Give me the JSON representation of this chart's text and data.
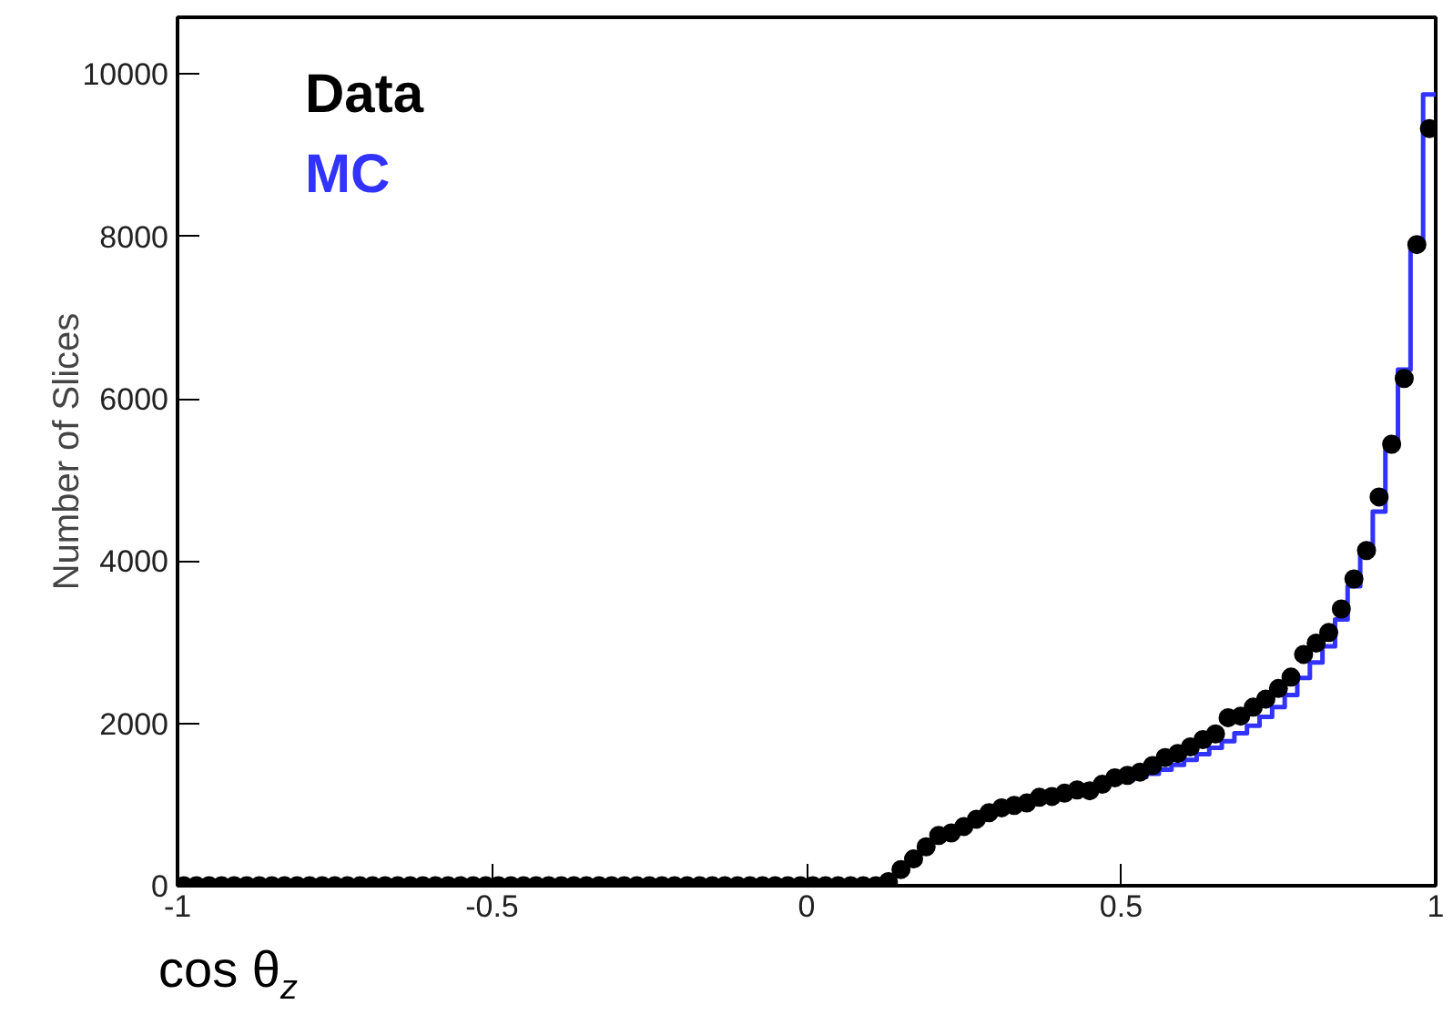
{
  "chart_data": {
    "type": "histogram",
    "xlabel": "cos θ$_{z}$",
    "ylabel": "Number of Slices",
    "bins": [
      -1.0,
      -0.98,
      -0.96,
      -0.94,
      -0.92,
      -0.9,
      -0.88,
      -0.86,
      -0.84,
      -0.82,
      -0.8,
      -0.78,
      -0.76,
      -0.74,
      -0.72,
      -0.7,
      -0.68,
      -0.66,
      -0.64,
      -0.62,
      -0.6,
      -0.58,
      -0.56,
      -0.54,
      -0.52,
      -0.5,
      -0.48,
      -0.46,
      -0.44,
      -0.42,
      -0.4,
      -0.38,
      -0.36,
      -0.34,
      -0.32,
      -0.3,
      -0.28,
      -0.26,
      -0.24,
      -0.22,
      -0.2,
      -0.18,
      -0.16,
      -0.14,
      -0.12,
      -0.1,
      -0.08,
      -0.06,
      -0.04,
      -0.02,
      0.0,
      0.02,
      0.04,
      0.06,
      0.08,
      0.1,
      0.12,
      0.14,
      0.16,
      0.18,
      0.2,
      0.22,
      0.24,
      0.26,
      0.28,
      0.3,
      0.32,
      0.34,
      0.36,
      0.38,
      0.4,
      0.42,
      0.44,
      0.46,
      0.48,
      0.5,
      0.52,
      0.54,
      0.56,
      0.58,
      0.6,
      0.62,
      0.64,
      0.66,
      0.68,
      0.7,
      0.72,
      0.74,
      0.76,
      0.78,
      0.8,
      0.82,
      0.84,
      0.86,
      0.88,
      0.9,
      0.92,
      0.94,
      0.96,
      0.98,
      1.0
    ],
    "series": [
      {
        "name": "MC",
        "color": "#3333ff",
        "values": [
          0,
          0,
          0,
          0,
          0,
          0,
          0,
          0,
          0,
          0,
          0,
          0,
          0,
          0,
          0,
          0,
          0,
          0,
          0,
          0,
          0,
          0,
          0,
          0,
          0,
          0,
          0,
          0,
          0,
          0,
          0,
          0,
          0,
          0,
          0,
          0,
          0,
          0,
          0,
          0,
          0,
          0,
          0,
          0,
          0,
          0,
          0,
          0,
          0,
          0,
          0,
          0,
          0,
          0,
          0,
          0,
          70,
          200,
          330,
          480,
          610,
          650,
          730,
          820,
          900,
          960,
          990,
          1020,
          1080,
          1100,
          1140,
          1170,
          1170,
          1240,
          1280,
          1310,
          1340,
          1380,
          1430,
          1490,
          1550,
          1620,
          1700,
          1780,
          1880,
          1970,
          2080,
          2200,
          2350,
          2560,
          2750,
          2950,
          3280,
          3690,
          4110,
          4610,
          5460,
          6360,
          7890,
          9750
        ]
      },
      {
        "name": "Data",
        "type": "scatter",
        "color": "#000000",
        "x": [
          -0.99,
          -0.97,
          -0.95,
          -0.93,
          -0.91,
          -0.89,
          -0.87,
          -0.85,
          -0.83,
          -0.81,
          -0.79,
          -0.77,
          -0.75,
          -0.73,
          -0.71,
          -0.69,
          -0.67,
          -0.65,
          -0.63,
          -0.61,
          -0.59,
          -0.57,
          -0.55,
          -0.53,
          -0.51,
          -0.49,
          -0.47,
          -0.45,
          -0.43,
          -0.41,
          -0.39,
          -0.37,
          -0.35,
          -0.33,
          -0.31,
          -0.29,
          -0.27,
          -0.25,
          -0.23,
          -0.21,
          -0.19,
          -0.17,
          -0.15,
          -0.13,
          -0.11,
          -0.09,
          -0.07,
          -0.05,
          -0.03,
          -0.01,
          0.01,
          0.03,
          0.05,
          0.07,
          0.09,
          0.11,
          0.13,
          0.15,
          0.17,
          0.19,
          0.21,
          0.23,
          0.25,
          0.27,
          0.29,
          0.31,
          0.33,
          0.35,
          0.37,
          0.39,
          0.41,
          0.43,
          0.45,
          0.47,
          0.49,
          0.51,
          0.53,
          0.55,
          0.57,
          0.59,
          0.61,
          0.63,
          0.65,
          0.67,
          0.69,
          0.71,
          0.73,
          0.75,
          0.77,
          0.79,
          0.81,
          0.83,
          0.85,
          0.87,
          0.89,
          0.91,
          0.93,
          0.95,
          0.97,
          0.99
        ],
        "values": [
          0,
          0,
          0,
          0,
          0,
          0,
          0,
          0,
          0,
          0,
          0,
          0,
          0,
          0,
          0,
          0,
          0,
          0,
          0,
          0,
          0,
          0,
          0,
          0,
          0,
          0,
          0,
          0,
          0,
          0,
          0,
          0,
          0,
          0,
          0,
          0,
          0,
          0,
          0,
          0,
          0,
          0,
          0,
          0,
          0,
          0,
          0,
          0,
          0,
          0,
          0,
          0,
          0,
          0,
          0,
          0,
          50,
          200,
          330,
          480,
          620,
          650,
          730,
          820,
          900,
          960,
          990,
          1020,
          1090,
          1100,
          1140,
          1180,
          1170,
          1250,
          1330,
          1360,
          1400,
          1480,
          1580,
          1630,
          1710,
          1800,
          1870,
          2070,
          2090,
          2200,
          2300,
          2430,
          2570,
          2850,
          2990,
          3120,
          3410,
          3780,
          4130,
          4790,
          5440,
          6250,
          7900,
          9330
        ]
      }
    ],
    "xlim": [
      -1,
      1
    ],
    "ylim": [
      0,
      10700
    ],
    "xticks": [
      -1,
      -0.5,
      0,
      0.5,
      1
    ],
    "yticks": [
      0,
      2000,
      4000,
      6000,
      8000,
      10000
    ],
    "legend": "top left",
    "marker": "circle",
    "grid": false
  }
}
